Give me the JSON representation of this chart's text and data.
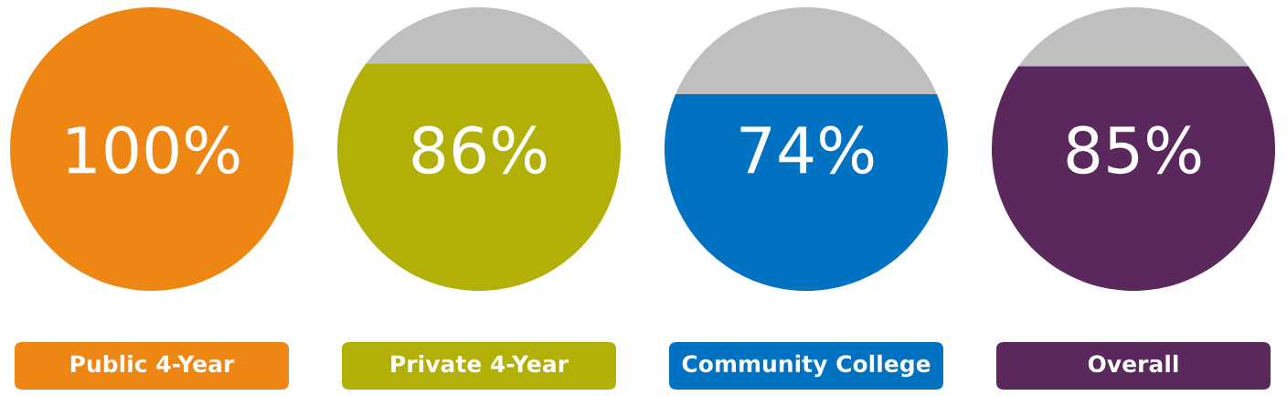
{
  "chart_data": {
    "type": "other",
    "categories": [
      "Public 4-Year",
      "Private 4-Year",
      "Community College",
      "Overall"
    ],
    "values": [
      100,
      86,
      74,
      85
    ],
    "value_labels": [
      "100%",
      "86%",
      "74%",
      "85%"
    ],
    "colors": [
      "#ee8614",
      "#b2b007",
      "#0072c1",
      "#5a285c"
    ]
  }
}
